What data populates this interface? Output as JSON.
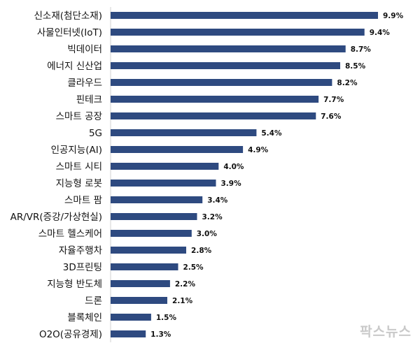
{
  "chart_data": {
    "type": "bar",
    "orientation": "horizontal",
    "categories": [
      "신소재(첨단소재)",
      "사물인터넷(IoT)",
      "빅데이터",
      "에너지 신산업",
      "클라우드",
      "핀테크",
      "스마트 공장",
      "5G",
      "인공지능(AI)",
      "스마트 시티",
      "지능형 로봇",
      "스마트 팜",
      "AR/VR(증강/가상현실)",
      "스마트 헬스케어",
      "자율주행차",
      "3D프린팅",
      "지능형 반도체",
      "드론",
      "블록체인",
      "O2O(공유경제)"
    ],
    "values": [
      9.9,
      9.4,
      8.7,
      8.5,
      8.2,
      7.7,
      7.6,
      5.4,
      4.9,
      4.0,
      3.9,
      3.4,
      3.2,
      3.0,
      2.8,
      2.5,
      2.2,
      2.1,
      1.5,
      1.3
    ],
    "value_labels": [
      "9.9%",
      "9.4%",
      "8.7%",
      "8.5%",
      "8.2%",
      "7.7%",
      "7.6%",
      "5.4%",
      "4.9%",
      "4.0%",
      "3.9%",
      "3.4%",
      "3.2%",
      "3.0%",
      "2.8%",
      "2.5%",
      "2.2%",
      "2.1%",
      "1.5%",
      "1.3%"
    ],
    "bar_color": "#2e4a80",
    "axis_visible": false,
    "grid": false
  },
  "watermark": "팍스뉴스"
}
